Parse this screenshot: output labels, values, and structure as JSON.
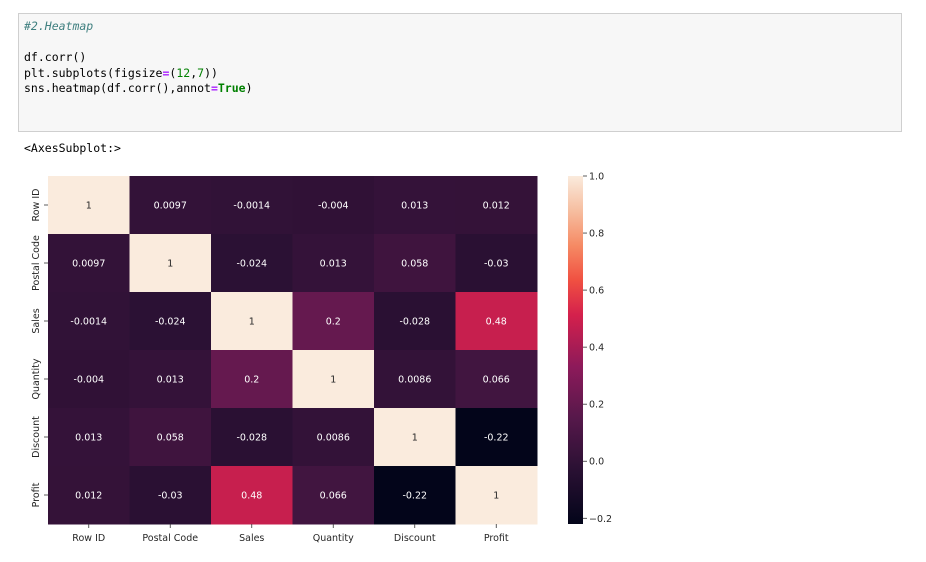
{
  "code_cell": {
    "comment": "#2.Heatmap",
    "line1": "df.corr()",
    "line2_a": "plt.subplots(figsize",
    "line2_eq": "=",
    "line2_b": "(",
    "line2_n1": "12",
    "line2_c": ",",
    "line2_n2": "7",
    "line2_d": "))",
    "line3_a": "sns.heatmap(df.corr(),annot",
    "line3_eq": "=",
    "line3_kw": "True",
    "line3_b": ")"
  },
  "output_text": "<AxesSubplot:>",
  "chart_data": {
    "type": "heatmap",
    "labels": [
      "Row ID",
      "Postal Code",
      "Sales",
      "Quantity",
      "Discount",
      "Profit"
    ],
    "matrix": [
      [
        1,
        0.0097,
        -0.0014,
        -0.004,
        0.013,
        0.012
      ],
      [
        0.0097,
        1,
        -0.024,
        0.013,
        0.058,
        -0.03
      ],
      [
        -0.0014,
        -0.024,
        1,
        0.2,
        -0.028,
        0.48
      ],
      [
        -0.004,
        0.013,
        0.2,
        1,
        0.0086,
        0.066
      ],
      [
        0.013,
        0.058,
        -0.028,
        0.0086,
        1,
        -0.22
      ],
      [
        0.012,
        -0.03,
        0.48,
        0.066,
        -0.22,
        1
      ]
    ],
    "annotations": [
      [
        "1",
        "0.0097",
        "-0.0014",
        "-0.004",
        "0.013",
        "0.012"
      ],
      [
        "0.0097",
        "1",
        "-0.024",
        "0.013",
        "0.058",
        "-0.03"
      ],
      [
        "-0.0014",
        "-0.024",
        "1",
        "0.2",
        "-0.028",
        "0.48"
      ],
      [
        "-0.004",
        "0.013",
        "0.2",
        "1",
        "0.0086",
        "0.066"
      ],
      [
        "0.013",
        "0.058",
        "-0.028",
        "0.0086",
        "1",
        "-0.22"
      ],
      [
        "0.012",
        "-0.03",
        "0.48",
        "0.066",
        "-0.22",
        "1"
      ]
    ],
    "colorbar": {
      "min": -0.22,
      "max": 1.0,
      "ticks": [
        1.0,
        0.8,
        0.6,
        0.4,
        0.2,
        0.0,
        -0.2
      ],
      "tick_labels": [
        "1.0",
        "0.8",
        "0.6",
        "0.4",
        "0.2",
        "0.0",
        "−0.2"
      ],
      "colormap": "rocket"
    },
    "grid": false
  }
}
